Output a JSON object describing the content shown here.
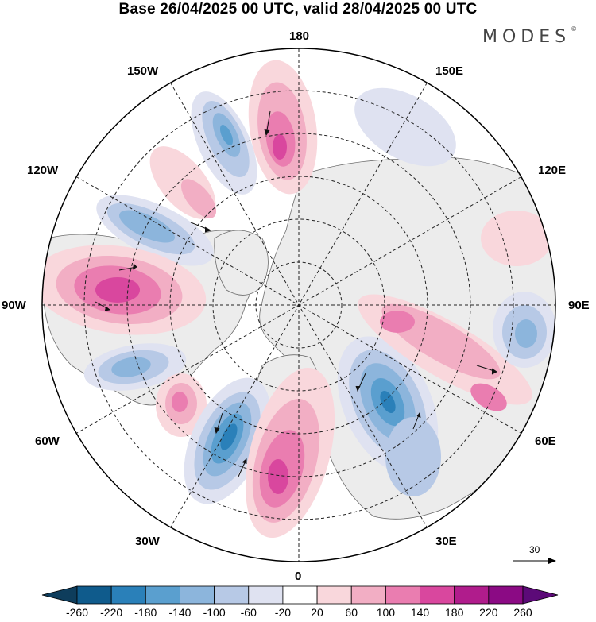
{
  "title": "Base 26/04/2025 00 UTC, valid 28/04/2025 00 UTC",
  "brand": {
    "name": "MODES",
    "mark": "©"
  },
  "longitude_labels": {
    "lon_180": "180",
    "lon_150W": "150W",
    "lon_150E": "150E",
    "lon_120W": "120W",
    "lon_120E": "120E",
    "lon_90W": "90W",
    "lon_90E": "90E",
    "lon_60W": "60W",
    "lon_60E": "60E",
    "lon_30W": "30W",
    "lon_30E": "30E",
    "lon_0": "0"
  },
  "reference_vector": {
    "value": "30"
  },
  "colorbar": {
    "ticks": [
      "-260",
      "-220",
      "-180",
      "-140",
      "-100",
      "-60",
      "-20",
      "20",
      "60",
      "100",
      "140",
      "180",
      "220",
      "260"
    ],
    "colors": [
      "#0e3d5c",
      "#0f5b8c",
      "#2a80b9",
      "#5a9fcf",
      "#8cb5dc",
      "#b7c9e6",
      "#dfe2f1",
      "#ffffff",
      "#f9d7dc",
      "#f2aec4",
      "#ea7db0",
      "#d9479e",
      "#b01c8c",
      "#8b0a84",
      "#5c0a78"
    ]
  }
}
